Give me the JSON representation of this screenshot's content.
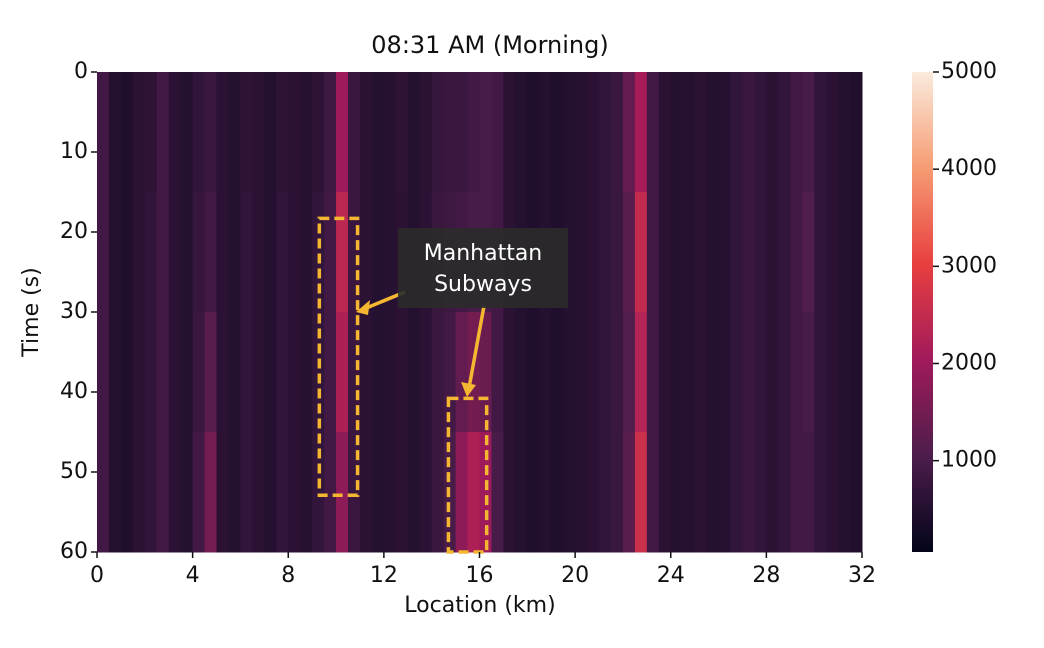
{
  "chart_data": {
    "type": "heatmap",
    "title": "08:31 AM (Morning)",
    "x_label": "Location (km)",
    "y_label": "Time (s)",
    "xlim": [
      0,
      32
    ],
    "ylim": [
      60,
      0
    ],
    "xticks": [
      0,
      4,
      8,
      12,
      16,
      20,
      24,
      28,
      32
    ],
    "yticks": [
      0,
      10,
      20,
      30,
      40,
      50,
      60
    ],
    "zlim": [
      60,
      5000
    ],
    "colorbar_ticks": [
      1000,
      2000,
      3000,
      4000,
      5000
    ],
    "colormap": [
      "#03051a",
      "#4c1d4b",
      "#a11a5b",
      "#e83f3f",
      "#f69c73",
      "#faebdd"
    ],
    "z": [
      [
        900,
        500,
        450,
        600,
        650,
        900,
        600,
        500,
        700,
        800,
        600,
        500,
        650,
        600,
        500,
        650,
        600,
        550,
        650,
        850,
        2000,
        800,
        600,
        500,
        550,
        650,
        500,
        600,
        750,
        800,
        800,
        900,
        1000,
        900,
        600,
        500,
        450,
        500,
        450,
        500,
        550,
        600,
        700,
        800,
        1300,
        2100,
        900,
        600,
        500,
        550,
        600,
        500,
        550,
        700,
        800,
        700,
        600,
        700,
        900,
        1000,
        700,
        600,
        500,
        450
      ],
      [
        900,
        500,
        450,
        600,
        700,
        900,
        600,
        500,
        750,
        900,
        600,
        500,
        700,
        600,
        500,
        700,
        600,
        550,
        700,
        900,
        2400,
        800,
        600,
        500,
        550,
        600,
        500,
        600,
        800,
        850,
        900,
        1000,
        1000,
        900,
        600,
        500,
        450,
        500,
        450,
        500,
        550,
        600,
        700,
        800,
        1200,
        2500,
        900,
        600,
        500,
        550,
        600,
        500,
        550,
        700,
        800,
        700,
        600,
        700,
        900,
        1100,
        700,
        600,
        500,
        450
      ],
      [
        900,
        500,
        450,
        600,
        700,
        900,
        600,
        500,
        800,
        1200,
        600,
        500,
        700,
        600,
        500,
        700,
        600,
        550,
        700,
        900,
        2200,
        800,
        600,
        500,
        550,
        600,
        500,
        600,
        800,
        900,
        1300,
        1500,
        1400,
        900,
        600,
        500,
        450,
        500,
        450,
        500,
        550,
        600,
        700,
        800,
        1100,
        2300,
        900,
        600,
        500,
        550,
        600,
        500,
        550,
        700,
        800,
        700,
        600,
        700,
        900,
        1000,
        700,
        600,
        500,
        450
      ],
      [
        900,
        500,
        450,
        600,
        700,
        900,
        600,
        500,
        900,
        1500,
        600,
        500,
        700,
        600,
        500,
        700,
        600,
        550,
        700,
        900,
        1800,
        800,
        600,
        500,
        550,
        600,
        500,
        600,
        800,
        1000,
        1800,
        2200,
        2000,
        1000,
        600,
        500,
        450,
        500,
        450,
        500,
        550,
        600,
        700,
        800,
        1200,
        2600,
        900,
        600,
        500,
        550,
        600,
        500,
        550,
        700,
        800,
        700,
        600,
        700,
        900,
        900,
        700,
        600,
        500,
        450
      ]
    ],
    "annotation": {
      "text_lines": [
        "Manhattan",
        "Subways"
      ],
      "color": "#f5b731",
      "regions": [
        {
          "x": [
            9.3,
            10.9
          ],
          "y": [
            18.3,
            52.9
          ]
        },
        {
          "x": [
            14.7,
            16.3
          ],
          "y": [
            40.8,
            60
          ]
        }
      ]
    }
  }
}
